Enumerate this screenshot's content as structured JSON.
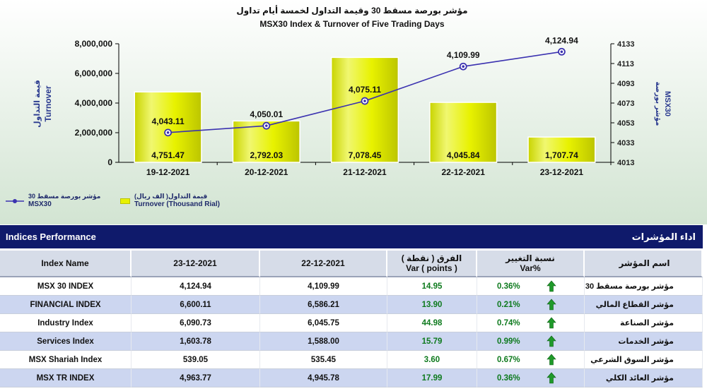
{
  "chart_data": {
    "type": "bar+line",
    "title_ar": "مؤشر بورصة مسقط 30 وقيمة التداول لخمسة أيام تداول",
    "title_en": "MSX30 Index & Turnover of Five Trading Days",
    "categories": [
      "19-12-2021",
      "20-12-2021",
      "21-12-2021",
      "22-12-2021",
      "23-12-2021"
    ],
    "series": [
      {
        "name": "Turnover (Thousand Rial)",
        "name_ar": "قيمة التداول( الف ريال)",
        "type": "bar",
        "axis": "left",
        "values": [
          4751.47,
          2792.03,
          7078.45,
          4045.84,
          1707.74
        ],
        "labels": [
          "4,751.47",
          "2,792.03",
          "7,078.45",
          "4,045.84",
          "1,707.74"
        ],
        "plot_values": [
          4751470,
          2792030,
          7078450,
          4045840,
          1707740
        ]
      },
      {
        "name": "MSX30",
        "name_ar": "مؤشر بورصة مسقط 30",
        "type": "line",
        "axis": "right",
        "values": [
          4043.11,
          4050.01,
          4075.11,
          4109.99,
          4124.94
        ],
        "labels": [
          "4,043.11",
          "4,050.01",
          "4,075.11",
          "4,109.99",
          "4,124.94"
        ]
      }
    ],
    "y_left": {
      "label_ar": "قيمة التداول",
      "label_en": "Turnover",
      "range": [
        0,
        8000000
      ],
      "ticks": [
        "8,000,000",
        "6,000,000",
        "4,000,000",
        "2,000,000",
        "0"
      ]
    },
    "y_right": {
      "label_ar": "مؤشر بورصة",
      "label_en": "MSX30",
      "range": [
        4013,
        4133
      ],
      "ticks": [
        "4133",
        "4113",
        "4093",
        "4073",
        "4053",
        "4033",
        "4013"
      ]
    },
    "colors": {
      "bar": "#e8f200",
      "bar_top": "#f6fb9a",
      "line": "#3b32b0",
      "plot_bg": "#d9ead9",
      "axis_text": "#1f2a6b"
    }
  },
  "legend": {
    "line_ar": "مؤشر بورصة مسقط 30",
    "line_en": "MSX30",
    "bar_ar": "قيمة التداول( الف ريال)",
    "bar_en": "Turnover (Thousand Rial)"
  },
  "performance": {
    "title_en": "Indices Performance",
    "title_ar": "اداء المؤشرات",
    "columns": {
      "name": "Index Name",
      "date1": "23-12-2021",
      "date2": "22-12-2021",
      "var_ar": "الفرق ( نقطة )",
      "var_en": "Var ( points )",
      "pct_ar": "نسبة التغيير",
      "pct_en": "Var%",
      "name_ar": "اسم المؤشر"
    },
    "rows": [
      {
        "name": "MSX 30 INDEX",
        "d1": "4,124.94",
        "d2": "4,109.99",
        "var": "14.95",
        "pct": "0.36%",
        "name_ar": "مؤشر بورصة مسقط 30"
      },
      {
        "name": "FINANCIAL INDEX",
        "d1": "6,600.11",
        "d2": "6,586.21",
        "var": "13.90",
        "pct": "0.21%",
        "name_ar": "مؤشر القطاع المالي"
      },
      {
        "name": "Industry Index",
        "d1": "6,090.73",
        "d2": "6,045.75",
        "var": "44.98",
        "pct": "0.74%",
        "name_ar": "مؤشر الصناعة"
      },
      {
        "name": "Services Index",
        "d1": "1,603.78",
        "d2": "1,588.00",
        "var": "15.79",
        "pct": "0.99%",
        "name_ar": "مؤشر الخدمات"
      },
      {
        "name": "MSX Shariah Index",
        "d1": "539.05",
        "d2": "535.45",
        "var": "3.60",
        "pct": "0.67%",
        "name_ar": "مؤشر السوق الشرعي"
      },
      {
        "name": "MSX TR INDEX",
        "d1": "4,963.77",
        "d2": "4,945.78",
        "var": "17.99",
        "pct": "0.36%",
        "name_ar": "مؤشر العائد الكلي"
      }
    ],
    "arrow_icon": "up-arrow-icon",
    "arrow_color": "#1f9a2a"
  }
}
